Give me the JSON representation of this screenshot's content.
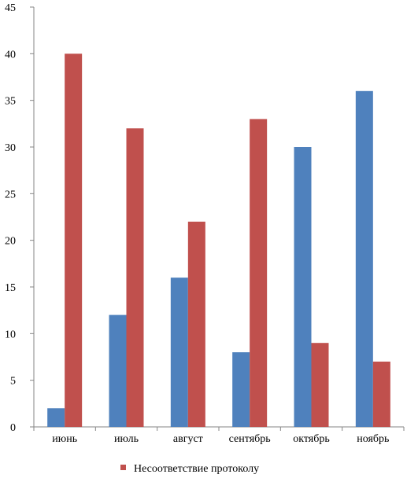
{
  "chart_data": {
    "type": "bar",
    "categories": [
      "июнь",
      "июль",
      "август",
      "сентябрь",
      "октябрь",
      "ноябрь"
    ],
    "series": [
      {
        "values": [
          2,
          12,
          16,
          8,
          30,
          36
        ],
        "color": "#4F81BD"
      },
      {
        "name": "Несоответствие протоколу",
        "values": [
          40,
          32,
          22,
          33,
          9,
          7
        ],
        "color": "#C0504D"
      }
    ],
    "ylim": [
      0,
      45
    ],
    "yticks": [
      0,
      5,
      10,
      15,
      20,
      25,
      30,
      35,
      40,
      45
    ],
    "grid": false,
    "legend_position": "bottom"
  }
}
